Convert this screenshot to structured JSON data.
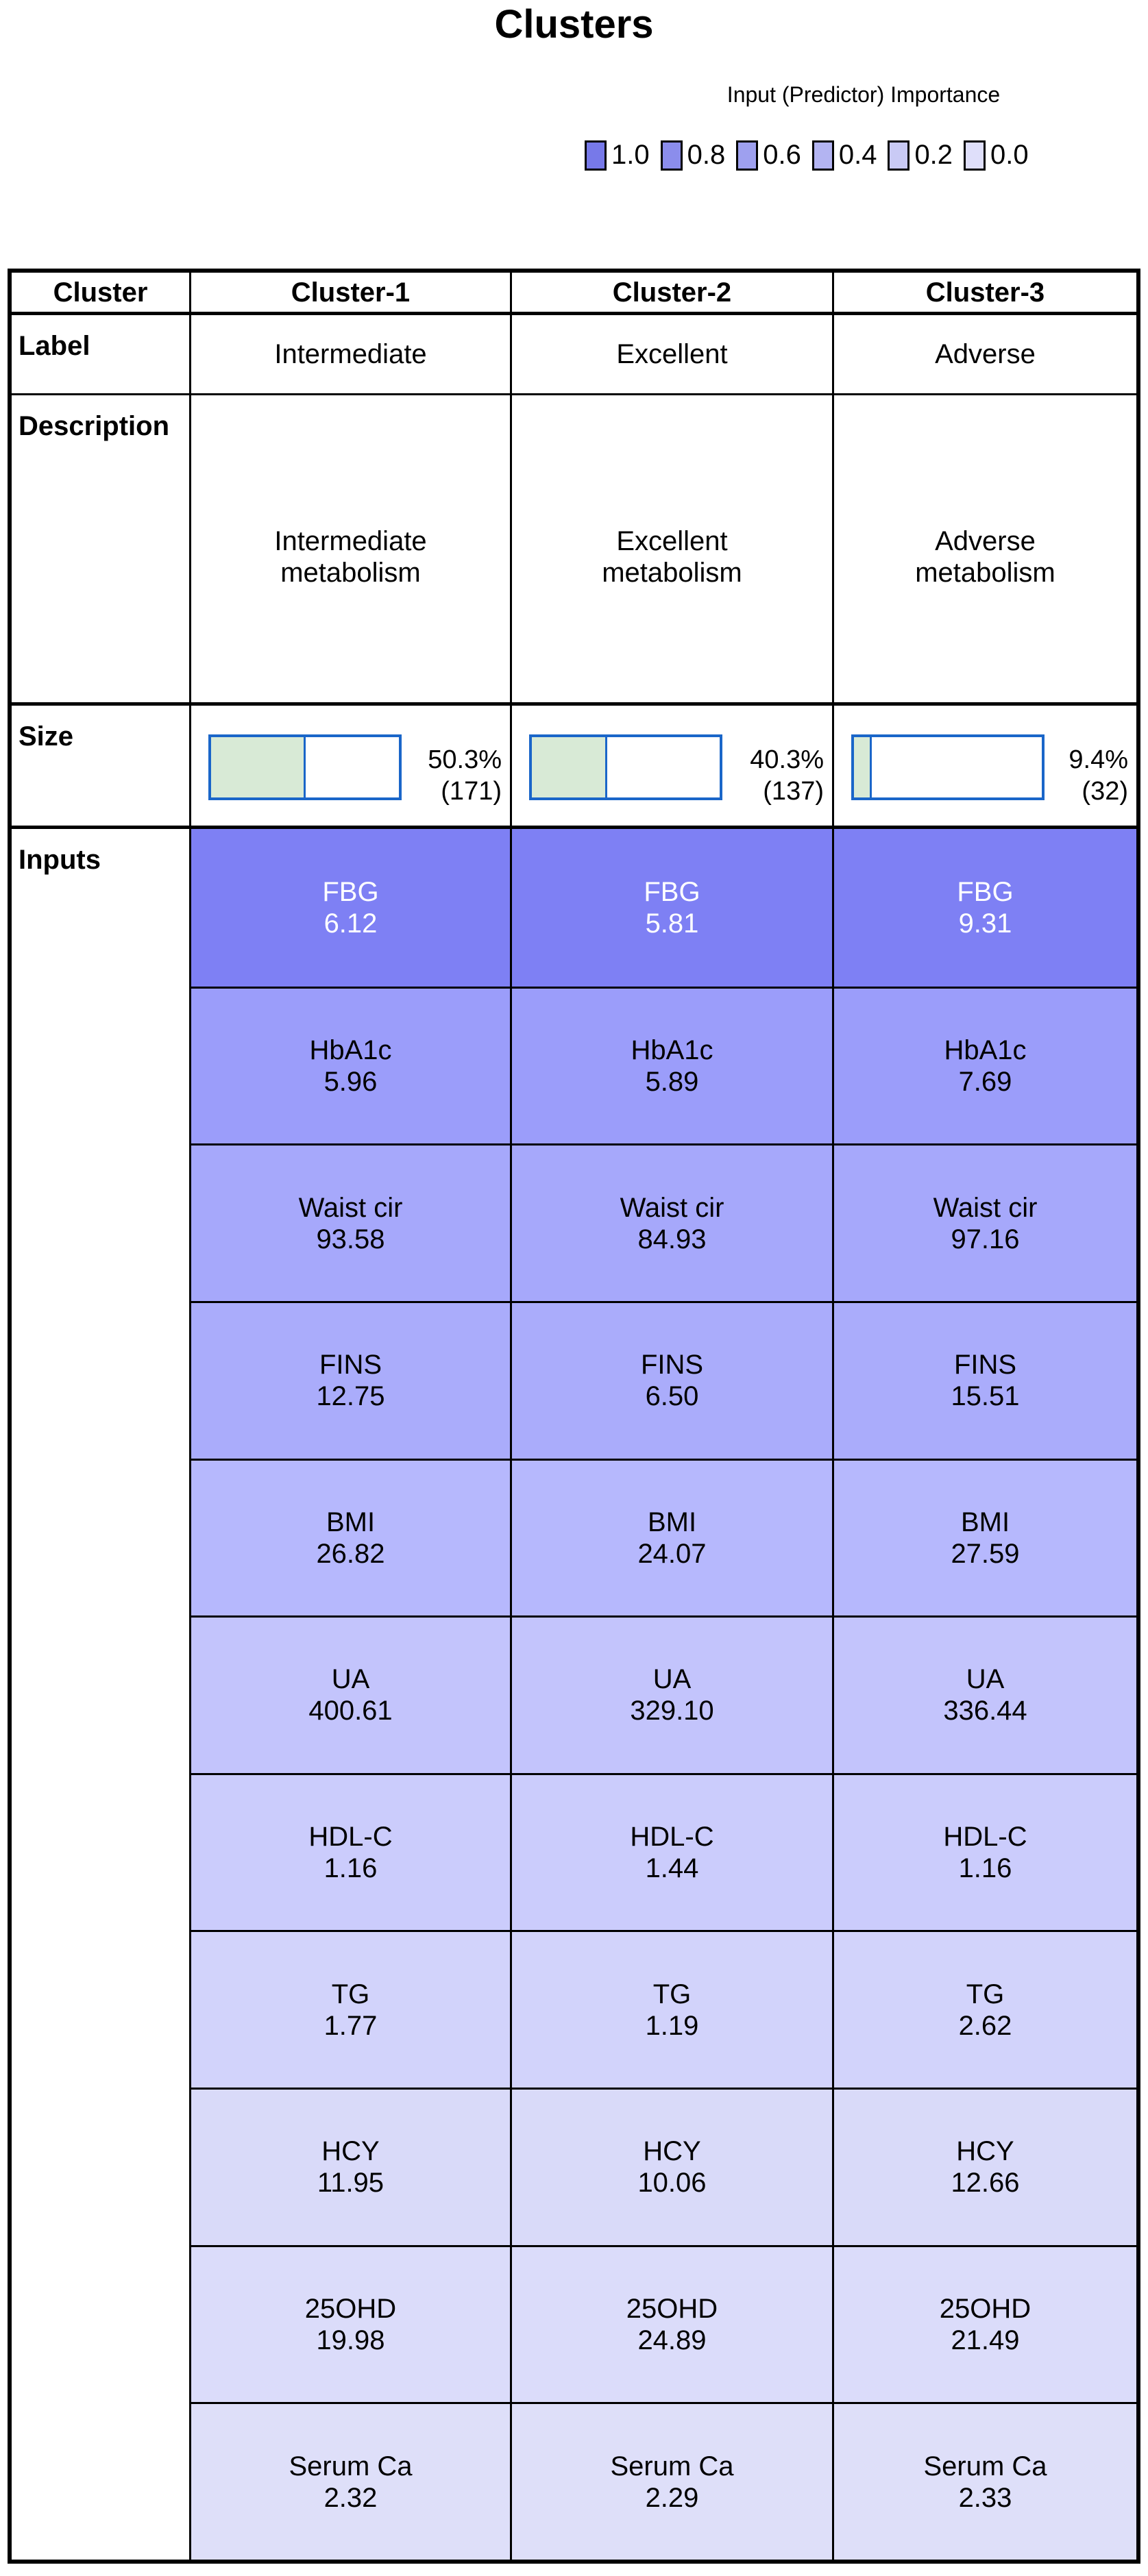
{
  "title": "Clusters",
  "legend": {
    "heading": "Input (Predictor) Importance",
    "items": [
      {
        "label": "1.0",
        "color": "#7779E9"
      },
      {
        "label": "0.8",
        "color": "#8B8DEC"
      },
      {
        "label": "0.6",
        "color": "#9EA0EF"
      },
      {
        "label": "0.4",
        "color": "#B3B4F2"
      },
      {
        "label": "0.2",
        "color": "#C9CAF5"
      },
      {
        "label": "0.0",
        "color": "#DFDFFA"
      }
    ]
  },
  "table": {
    "corner_label": "Cluster",
    "columns": [
      "Cluster-1",
      "Cluster-2",
      "Cluster-3"
    ],
    "label_row": {
      "label": "Label",
      "values": [
        "Intermediate",
        "Excellent",
        "Adverse"
      ]
    },
    "description_row": {
      "label": "Description",
      "values": [
        "Intermediate\nmetabolism",
        "Excellent\nmetabolism",
        "Adverse\nmetabolism"
      ]
    },
    "size_row": {
      "label": "Size",
      "bar_border_color": "#1A66C9",
      "bar_fill_color": "#D8EAD6",
      "values": [
        {
          "percent": "50.3%",
          "count": "(171)",
          "fraction": 0.503
        },
        {
          "percent": "40.3%",
          "count": "(137)",
          "fraction": 0.403
        },
        {
          "percent": "9.4%",
          "count": "(32)",
          "fraction": 0.094
        }
      ]
    },
    "inputs_row": {
      "label": "Inputs",
      "features": [
        {
          "label": "FBG",
          "values": [
            "6.12",
            "5.81",
            "9.31"
          ],
          "color": "#7E80F4",
          "text_color": "#FFFFFF"
        },
        {
          "label": "HbA1c",
          "values": [
            "5.96",
            "5.89",
            "7.69"
          ],
          "color": "#9B9DFA",
          "text_color": "#000000"
        },
        {
          "label": "Waist cir",
          "values": [
            "93.58",
            "84.93",
            "97.16"
          ],
          "color": "#A6A8FB",
          "text_color": "#000000"
        },
        {
          "label": "FINS",
          "values": [
            "12.75",
            "6.50",
            "15.51"
          ],
          "color": "#AAACFB",
          "text_color": "#000000"
        },
        {
          "label": "BMI",
          "values": [
            "26.82",
            "24.07",
            "27.59"
          ],
          "color": "#B6B8FD",
          "text_color": "#000000"
        },
        {
          "label": "UA",
          "values": [
            "400.61",
            "329.10",
            "336.44"
          ],
          "color": "#C3C4FC",
          "text_color": "#000000"
        },
        {
          "label": "HDL-C",
          "values": [
            "1.16",
            "1.44",
            "1.16"
          ],
          "color": "#CBCCFC",
          "text_color": "#000000"
        },
        {
          "label": "TG",
          "values": [
            "1.77",
            "1.19",
            "2.62"
          ],
          "color": "#D2D3FB",
          "text_color": "#000000"
        },
        {
          "label": "HCY",
          "values": [
            "11.95",
            "10.06",
            "12.66"
          ],
          "color": "#D9DAF9",
          "text_color": "#000000"
        },
        {
          "label": "25OHD",
          "values": [
            "19.98",
            "24.89",
            "21.49"
          ],
          "color": "#DBDCFA",
          "text_color": "#000000"
        },
        {
          "label": "Serum Ca",
          "values": [
            "2.32",
            "2.29",
            "2.33"
          ],
          "color": "#DEDFF9",
          "text_color": "#000000"
        }
      ]
    }
  },
  "chart_data": {
    "type": "table",
    "title": "Clusters",
    "legend_title": "Input (Predictor) Importance",
    "legend_ticks": [
      1.0,
      0.8,
      0.6,
      0.4,
      0.2,
      0.0
    ],
    "clusters": [
      {
        "name": "Cluster-1",
        "label": "Intermediate",
        "description": "Intermediate metabolism",
        "size_percent": 50.3,
        "size_count": 171
      },
      {
        "name": "Cluster-2",
        "label": "Excellent",
        "description": "Excellent metabolism",
        "size_percent": 40.3,
        "size_count": 137
      },
      {
        "name": "Cluster-3",
        "label": "Adverse",
        "description": "Adverse metabolism",
        "size_percent": 9.4,
        "size_count": 32
      }
    ],
    "inputs_by_importance": [
      {
        "feature": "FBG",
        "values": [
          6.12,
          5.81,
          9.31
        ]
      },
      {
        "feature": "HbA1c",
        "values": [
          5.96,
          5.89,
          7.69
        ]
      },
      {
        "feature": "Waist cir",
        "values": [
          93.58,
          84.93,
          97.16
        ]
      },
      {
        "feature": "FINS",
        "values": [
          12.75,
          6.5,
          15.51
        ]
      },
      {
        "feature": "BMI",
        "values": [
          26.82,
          24.07,
          27.59
        ]
      },
      {
        "feature": "UA",
        "values": [
          400.61,
          329.1,
          336.44
        ]
      },
      {
        "feature": "HDL-C",
        "values": [
          1.16,
          1.44,
          1.16
        ]
      },
      {
        "feature": "TG",
        "values": [
          1.77,
          1.19,
          2.62
        ]
      },
      {
        "feature": "HCY",
        "values": [
          11.95,
          10.06,
          12.66
        ]
      },
      {
        "feature": "25OHD",
        "values": [
          19.98,
          24.89,
          21.49
        ]
      },
      {
        "feature": "Serum Ca",
        "values": [
          2.32,
          2.29,
          2.33
        ]
      }
    ]
  }
}
